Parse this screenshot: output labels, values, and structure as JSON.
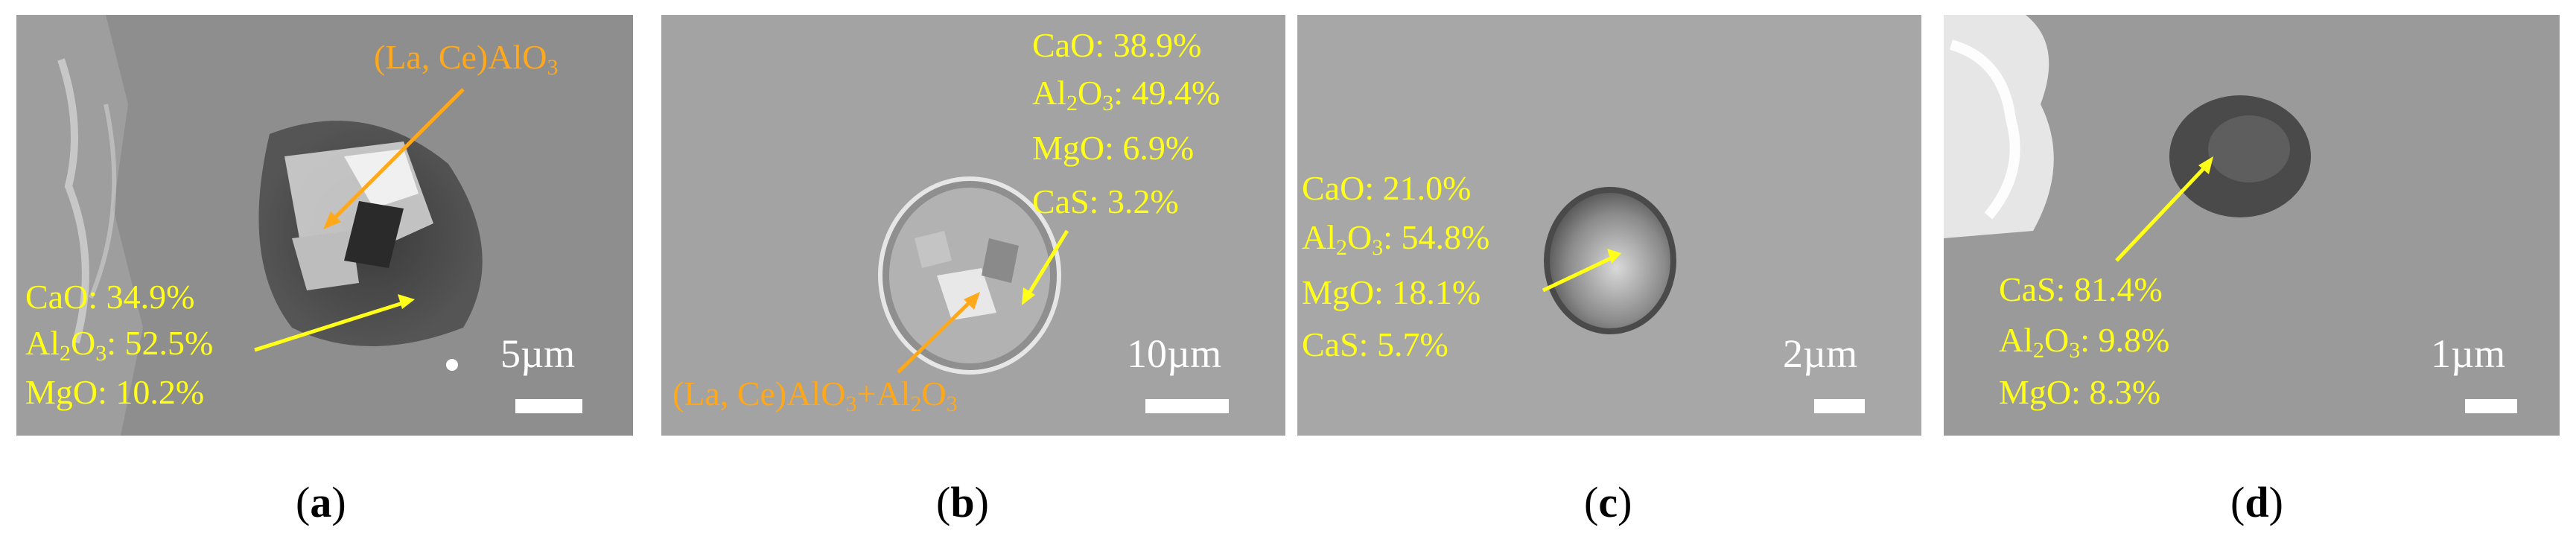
{
  "panels": [
    {
      "caption": "a",
      "scale": "5µm",
      "particle_label": "(La, Ce)AlO3",
      "composition": {
        "CaO": "CaO: 34.9%",
        "Al2O3_value": ": 52.5%",
        "MgO": "MgO: 10.2%"
      }
    },
    {
      "caption": "b",
      "scale": "10µm",
      "particle_label": {
        "part1": "(La, Ce)AlO",
        "part2": "+Al",
        "part3": "O"
      },
      "composition": {
        "CaO": "CaO: 38.9%",
        "Al2O3_value": ": 49.4%",
        "MgO": "MgO: 6.9%",
        "CaS": "CaS: 3.2%"
      }
    },
    {
      "caption": "c",
      "scale": "2µm",
      "composition": {
        "CaO": "CaO: 21.0%",
        "Al2O3_value": ": 54.8%",
        "MgO": "MgO: 18.1%",
        "CaS": "CaS: 5.7%"
      }
    },
    {
      "caption": "d",
      "scale": "1µm",
      "composition": {
        "CaS": "CaS: 81.4%",
        "Al2O3_value": ": 9.8%",
        "MgO": "MgO: 8.3%"
      }
    }
  ],
  "formula": {
    "al2o3_prefix": "Al",
    "sub_2": "2",
    "sub_3": "3",
    "o": "O",
    "la_ce_alo": "(La, Ce)AlO"
  },
  "colors": {
    "annotation_yellow": "#ffff1a",
    "annotation_orange": "#ffa81a",
    "scale": "#ffffff"
  }
}
